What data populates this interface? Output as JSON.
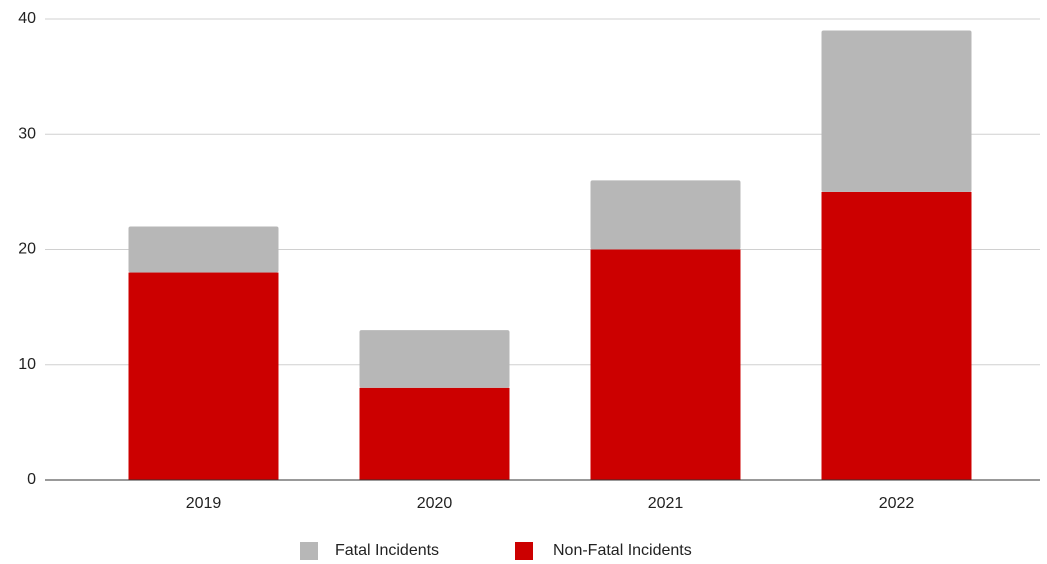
{
  "chart_data": {
    "type": "bar",
    "stacked": true,
    "categories": [
      "2019",
      "2020",
      "2021",
      "2022"
    ],
    "series": [
      {
        "name": "Fatal Incidents",
        "color": "#b7b7b7",
        "values": [
          4,
          5,
          6,
          14
        ]
      },
      {
        "name": "Non-Fatal Incidents",
        "color": "#cc0000",
        "values": [
          18,
          8,
          20,
          25
        ]
      }
    ],
    "ylim": [
      0,
      40
    ],
    "yticks": [
      0,
      10,
      20,
      30,
      40
    ],
    "grid": true,
    "legend": "bottom"
  }
}
